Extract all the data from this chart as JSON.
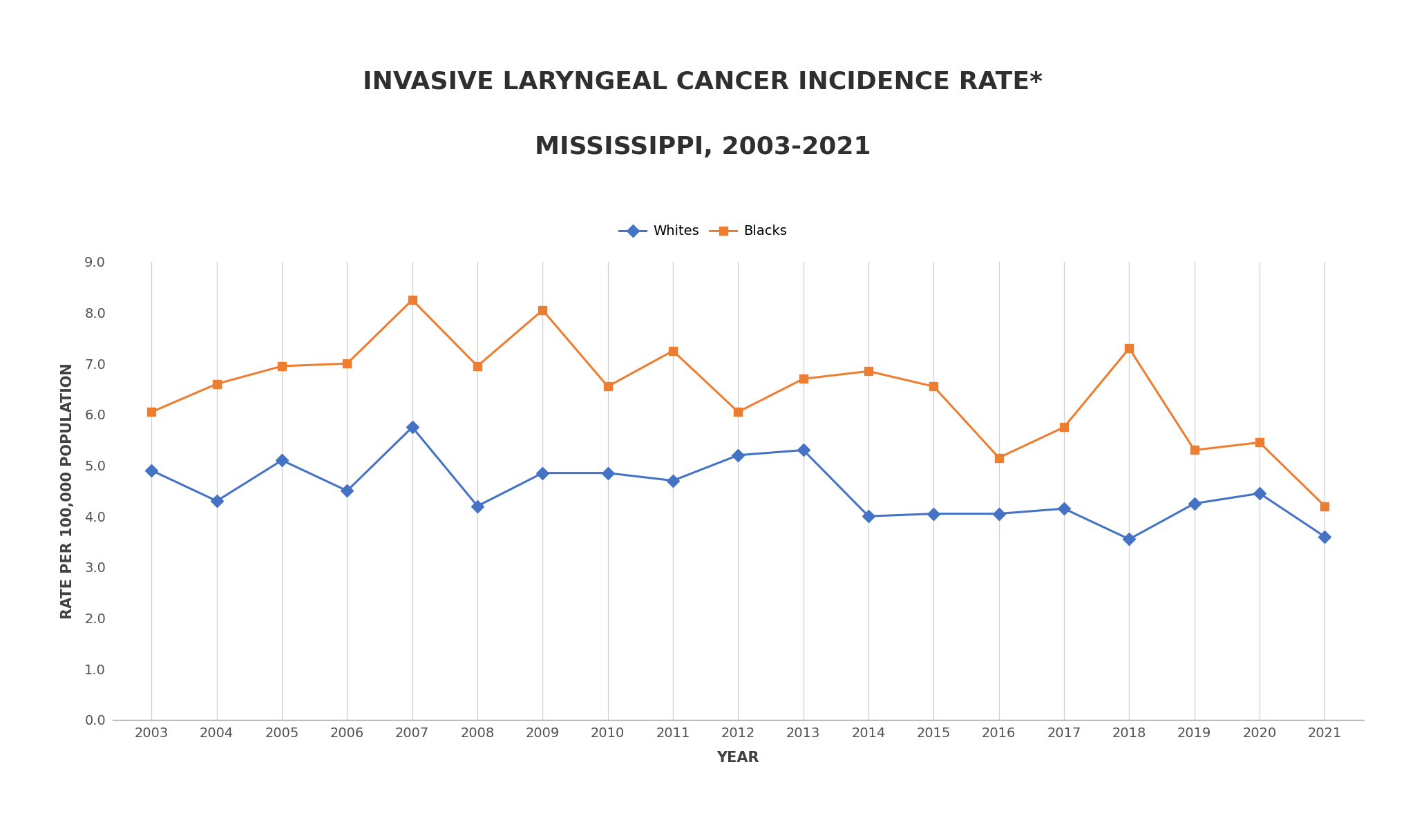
{
  "title_line1": "INVASIVE LARYNGEAL CANCER INCIDENCE RATE*",
  "title_line2": "MISSISSIPPI, 2003-2021",
  "xlabel": "YEAR",
  "ylabel": "RATE PER 100,000 POPULATION",
  "years": [
    2003,
    2004,
    2005,
    2006,
    2007,
    2008,
    2009,
    2010,
    2011,
    2012,
    2013,
    2014,
    2015,
    2016,
    2017,
    2018,
    2019,
    2020,
    2021
  ],
  "whites": [
    4.9,
    4.3,
    5.1,
    4.5,
    5.75,
    4.2,
    4.85,
    4.85,
    4.7,
    5.2,
    5.3,
    4.0,
    4.05,
    4.05,
    4.15,
    3.55,
    4.25,
    4.45,
    3.6
  ],
  "blacks": [
    6.05,
    6.6,
    6.95,
    7.0,
    8.25,
    6.95,
    8.05,
    6.55,
    7.25,
    6.05,
    6.7,
    6.85,
    6.55,
    5.15,
    5.75,
    7.3,
    5.3,
    5.45,
    4.2
  ],
  "whites_color": "#4472C4",
  "blacks_color": "#ED7D31",
  "whites_label": "Whites",
  "blacks_label": "Blacks",
  "ylim": [
    0,
    9.0
  ],
  "yticks": [
    0.0,
    1.0,
    2.0,
    3.0,
    4.0,
    5.0,
    6.0,
    7.0,
    8.0,
    9.0
  ],
  "background_color": "#FFFFFF",
  "title_fontsize": 26,
  "axis_label_fontsize": 15,
  "tick_fontsize": 14,
  "legend_fontsize": 14,
  "line_width": 2.2,
  "marker_size": 9
}
